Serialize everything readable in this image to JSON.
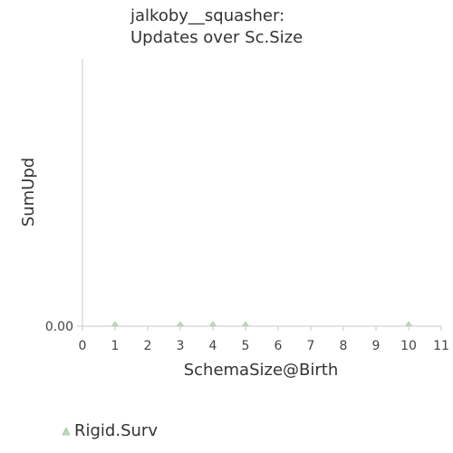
{
  "chart_data": {
    "type": "scatter",
    "title_lines": [
      "jalkoby__squasher:",
      "Updates over Sc.Size"
    ],
    "xlabel": "SchemaSize@Birth",
    "ylabel": "SumUpd",
    "xlim": [
      0,
      11
    ],
    "x_ticks": [
      0,
      1,
      2,
      3,
      4,
      5,
      6,
      7,
      8,
      9,
      10,
      11
    ],
    "y_ticks": [
      "0.00"
    ],
    "grid": false,
    "legend_position": "bottom-left",
    "series": [
      {
        "name": "Rigid.Surv",
        "marker": "triangle",
        "color": "#b9dcb4",
        "points": [
          {
            "x": 1,
            "y": 0
          },
          {
            "x": 3,
            "y": 0
          },
          {
            "x": 4,
            "y": 0
          },
          {
            "x": 5,
            "y": 0
          },
          {
            "x": 10,
            "y": 0
          }
        ]
      }
    ]
  }
}
